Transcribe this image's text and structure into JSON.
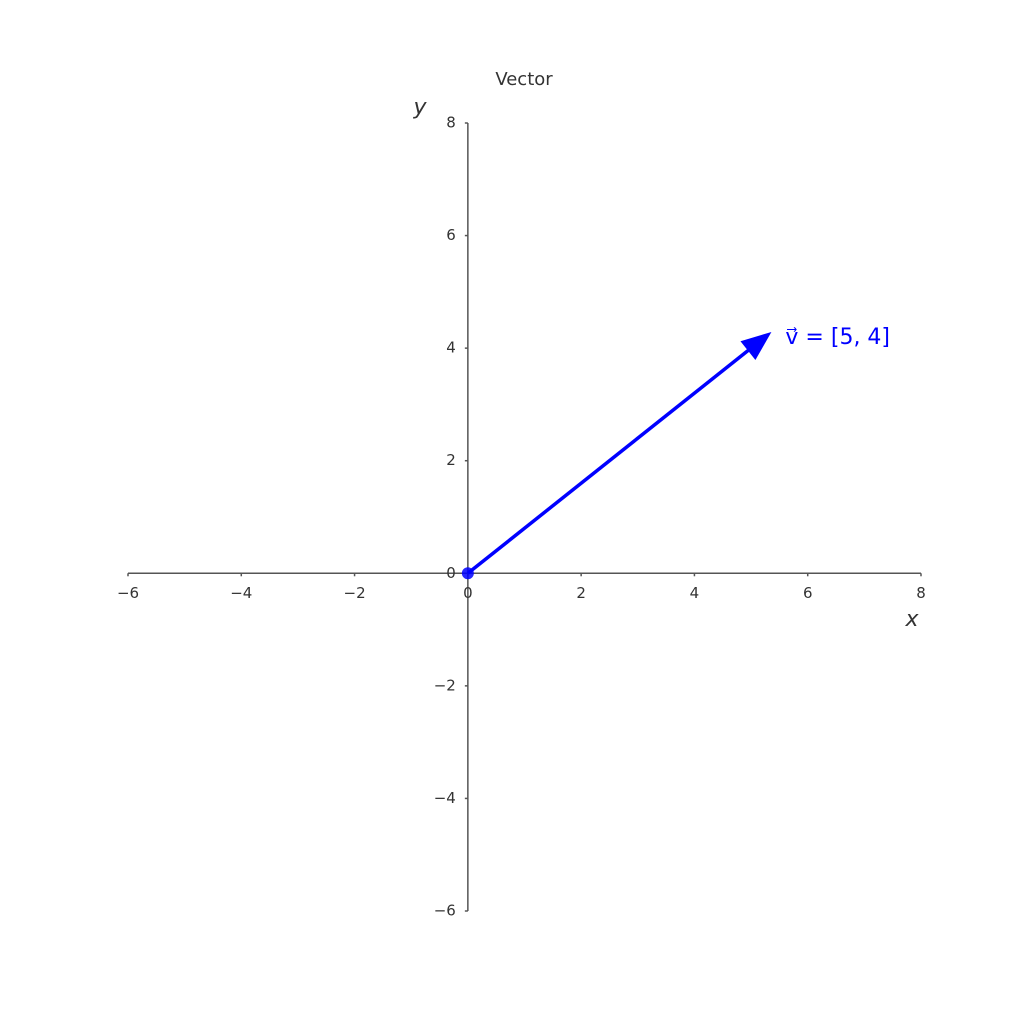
{
  "chart_data": {
    "type": "vector",
    "title": "Vector",
    "x_label": "x",
    "y_label": "y",
    "vector": {
      "label": "v⃗ = [5, 4]",
      "x": [
        0,
        5
      ],
      "y": [
        0,
        4
      ],
      "color": "#0000ff"
    },
    "xlim": [
      -6,
      8
    ],
    "ylim": [
      -6,
      8
    ],
    "xticks": [
      {
        "value": -6,
        "label": "−6"
      },
      {
        "value": -4,
        "label": "−4"
      },
      {
        "value": -2,
        "label": "−2"
      },
      0,
      2,
      4,
      6,
      8
    ],
    "yticks": [
      {
        "value": -6,
        "label": "−6"
      },
      {
        "value": -4,
        "label": "−4"
      },
      {
        "value": -2,
        "label": "−2"
      },
      0,
      2,
      4,
      6,
      8
    ]
  }
}
